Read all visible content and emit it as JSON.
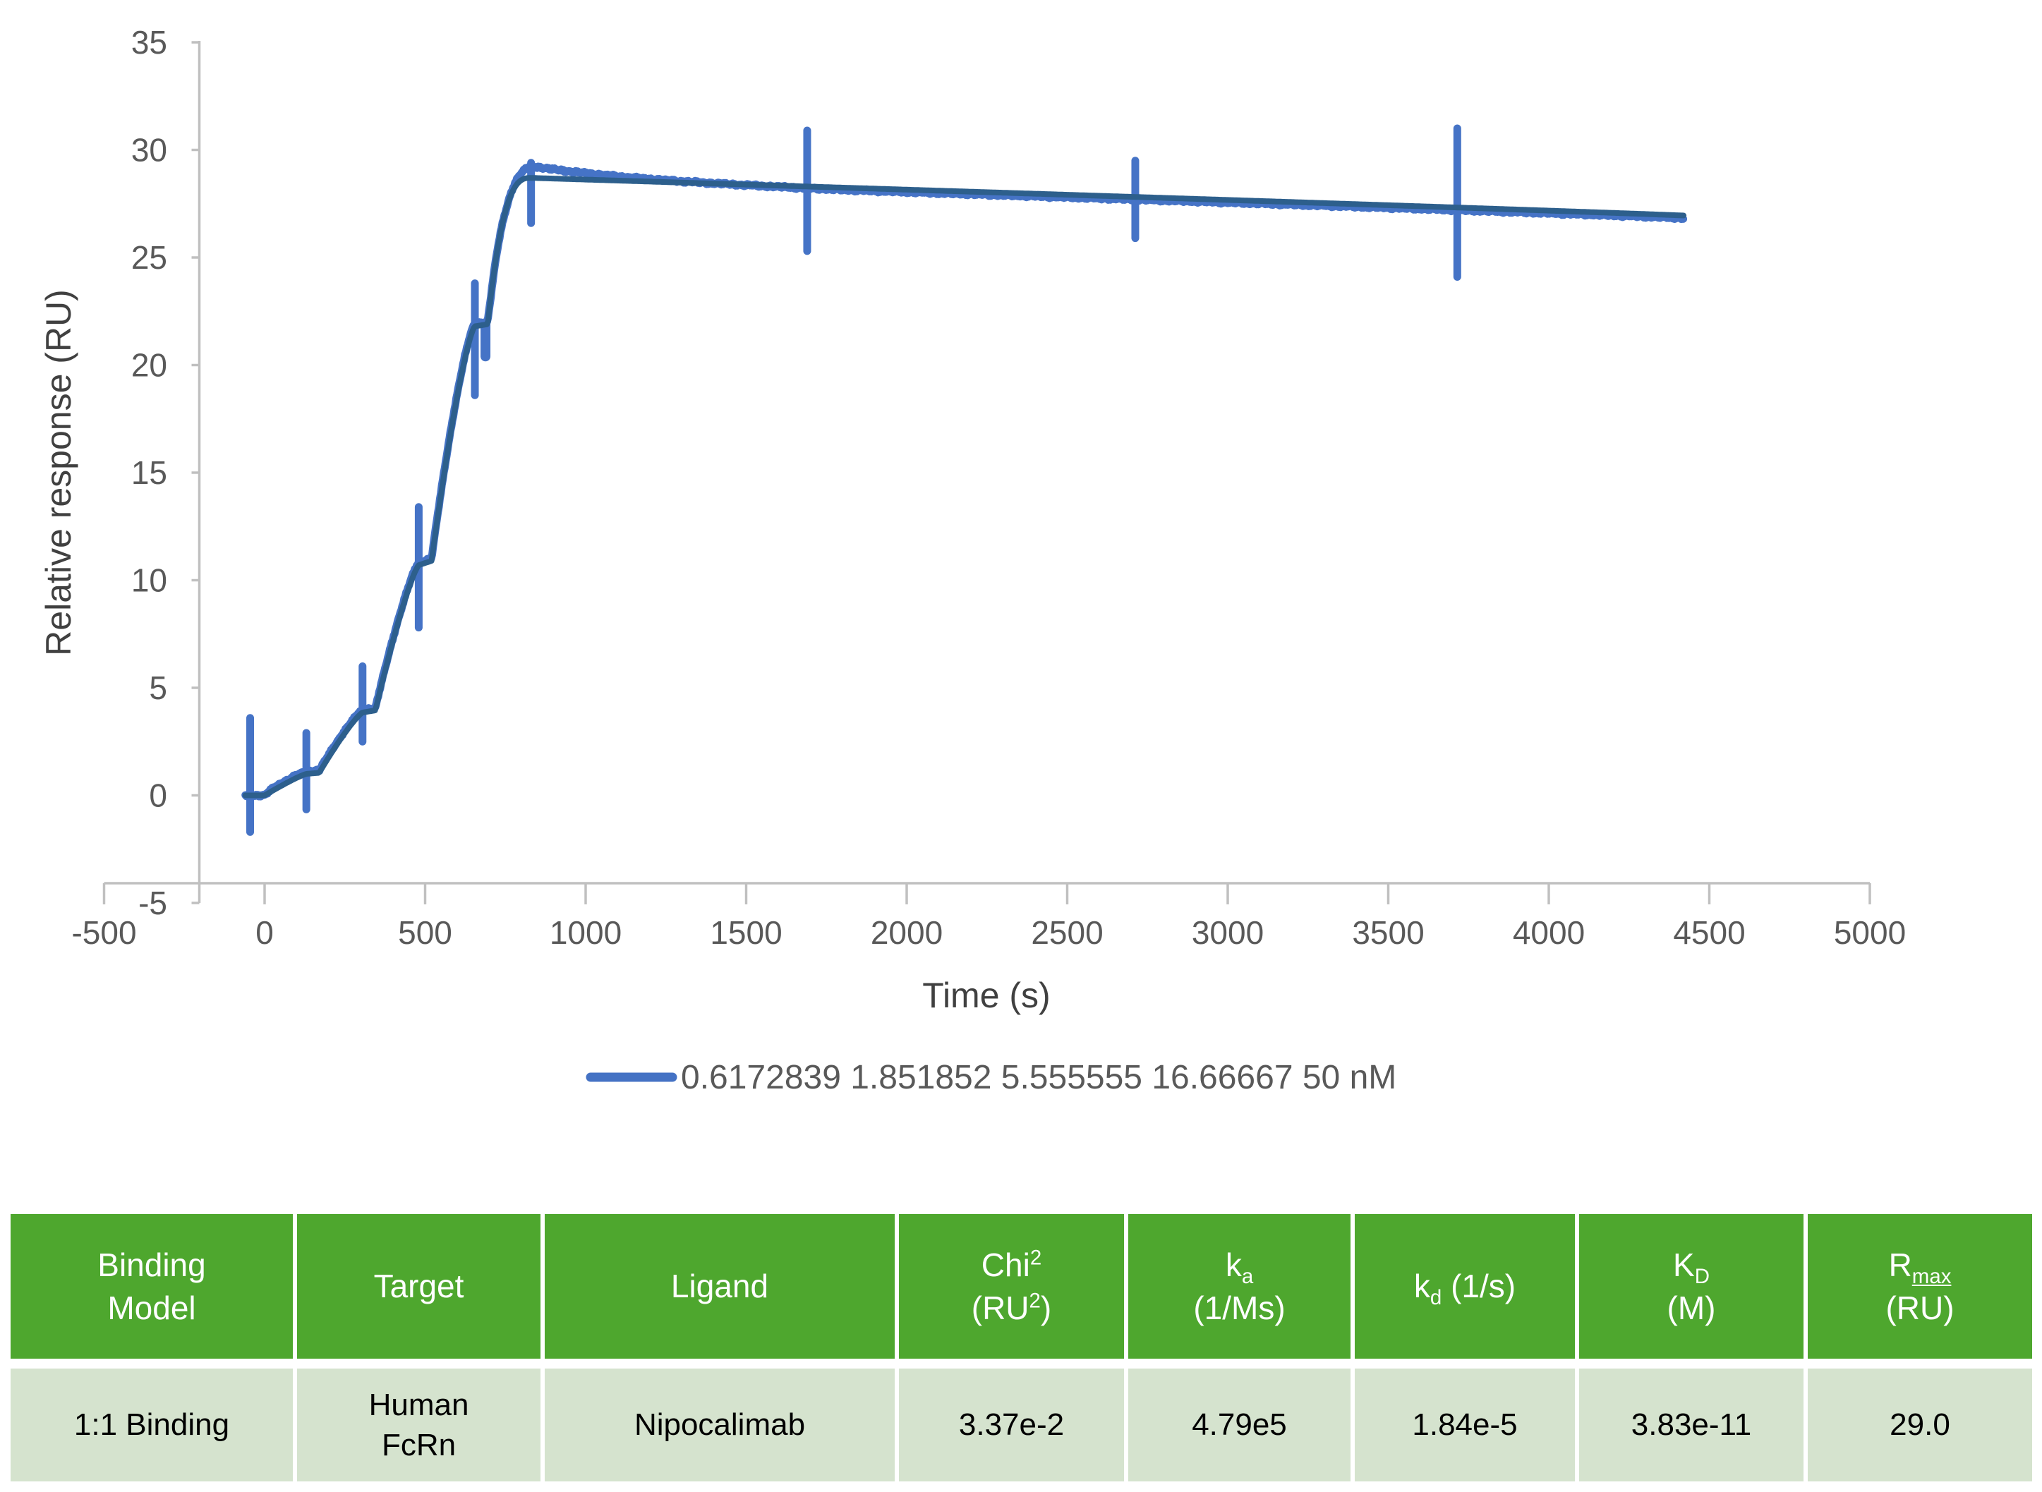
{
  "chart_data": {
    "type": "line",
    "title": "",
    "xlabel": "Time (s)",
    "ylabel": "Relative response (RU)",
    "xlim": [
      -500,
      5000
    ],
    "ylim": [
      -5,
      35
    ],
    "x_ticks": [
      -500,
      0,
      500,
      1000,
      1500,
      2000,
      2500,
      3000,
      3500,
      4000,
      4500,
      5000
    ],
    "y_ticks": [
      -5,
      0,
      5,
      10,
      15,
      20,
      25,
      30,
      35
    ],
    "grid": false,
    "legend": {
      "position": "bottom",
      "label": "0.6172839 1.851852 5.555555 16.66667 50 nM",
      "line_color": "#4472C4",
      "text_color": "#595959"
    },
    "concentrations_nM": [
      0.6172839,
      1.851852,
      5.555555,
      16.66667,
      50
    ],
    "series": [
      {
        "name": "measured",
        "color": "#4573C6",
        "width": 11
      },
      {
        "name": "fit",
        "color": "#2D5F8C",
        "width": 8
      }
    ],
    "plateau_levels_RU": [
      1.0,
      3.9,
      10.8,
      21.9,
      28.7
    ],
    "peak_RU": 29.3,
    "dissociation_end": {
      "t": 4420,
      "RU": 26.95
    },
    "fit_segments": [
      {
        "t0": -60,
        "t1": 0,
        "r0": 0,
        "r1": 0,
        "shape": 1
      },
      {
        "t0": 0,
        "t1": 130,
        "r0": 0,
        "r1": 1.0,
        "shape": 1.15
      },
      {
        "t0": 130,
        "t1": 170,
        "r0": 1.0,
        "r1": 1.05,
        "shape": 1
      },
      {
        "t0": 170,
        "t1": 305,
        "r0": 1.05,
        "r1": 3.85,
        "shape": 1.2
      },
      {
        "t0": 305,
        "t1": 345,
        "r0": 3.85,
        "r1": 3.95,
        "shape": 1
      },
      {
        "t0": 345,
        "t1": 480,
        "r0": 3.95,
        "r1": 10.7,
        "shape": 1.25
      },
      {
        "t0": 480,
        "t1": 520,
        "r0": 10.7,
        "r1": 10.9,
        "shape": 1
      },
      {
        "t0": 520,
        "t1": 655,
        "r0": 10.9,
        "r1": 21.8,
        "shape": 1.35
      },
      {
        "t0": 655,
        "t1": 695,
        "r0": 21.8,
        "r1": 21.9,
        "shape": 1
      },
      {
        "t0": 695,
        "t1": 830,
        "r0": 21.9,
        "r1": 28.7,
        "shape": 2.8
      },
      {
        "t0": 830,
        "t1": 4420,
        "r0": 28.7,
        "r1": 26.95,
        "shape": 0.95
      }
    ],
    "spikes": [
      {
        "t": -45,
        "lo": -1.7,
        "hi": 3.6,
        "w": 11
      },
      {
        "t": 130,
        "lo": -0.65,
        "hi": 2.9,
        "w": 11
      },
      {
        "t": 305,
        "lo": 2.5,
        "hi": 6.0,
        "w": 11
      },
      {
        "t": 480,
        "lo": 7.8,
        "hi": 13.4,
        "w": 11
      },
      {
        "t": 655,
        "lo": 18.6,
        "hi": 23.8,
        "w": 11
      },
      {
        "t": 688,
        "lo": 20.4,
        "hi": 21.9,
        "w": 14
      },
      {
        "t": 830,
        "lo": 26.6,
        "hi": 29.4,
        "w": 11
      },
      {
        "t": 1690,
        "lo": 25.3,
        "hi": 30.9,
        "w": 11
      },
      {
        "t": 2712,
        "lo": 25.9,
        "hi": 29.5,
        "w": 11
      },
      {
        "t": 3715,
        "lo": 24.1,
        "hi": 31.0,
        "w": 11
      }
    ],
    "measured_style": {
      "assoc_offset": 0.12,
      "overshoot_peak": 0.55,
      "late_offset": -0.12,
      "noise_amp": 0.07
    },
    "axis_color": "#C0C0C0",
    "tick_label_color": "#595959",
    "axis_title_color": "#404040"
  },
  "table": {
    "header_bg": "#4EA72E",
    "row_bg": "#D5E3CE",
    "headers": {
      "binding_model": {
        "line1": "Binding",
        "line2": "Model"
      },
      "target": "Target",
      "ligand": "Ligand",
      "chi2": {
        "base": "Chi",
        "sup": "2",
        "unit_open": "(RU",
        "unit_sup": "2",
        "unit_close": ")"
      },
      "ka": {
        "base": "k",
        "sub": "a",
        "unit": "(1/Ms)"
      },
      "kd": {
        "base": "k",
        "sub": "d",
        "unit": " (1/s)"
      },
      "KD": {
        "base": "K",
        "sub": "D",
        "unit": "(M)"
      },
      "rmax": {
        "base": "R",
        "sub": "max",
        "unit": "(RU)"
      }
    },
    "row": {
      "binding_model": "1:1 Binding",
      "target_line1": "Human",
      "target_line2": "FcRn",
      "ligand": "Nipocalimab",
      "chi2": "3.37e-2",
      "ka": "4.79e5",
      "kd": "1.84e-5",
      "KD": "3.83e-11",
      "rmax": "29.0"
    }
  }
}
